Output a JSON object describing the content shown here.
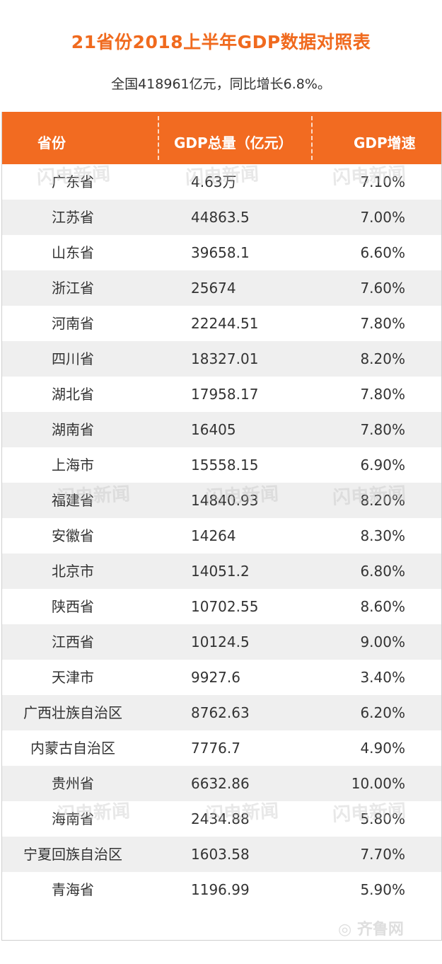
{
  "title": "21省份2018上半年GDP数据对照表",
  "subtitle": "全国418961亿元，同比增长6.8%。",
  "headers": {
    "province": "省份",
    "gdp": "GDP总量（亿元）",
    "rate": "GDP增速"
  },
  "rows": [
    {
      "province": "广东省",
      "gdp": "4.63万",
      "rate": "7.10%"
    },
    {
      "province": "江苏省",
      "gdp": "44863.5",
      "rate": "7.00%"
    },
    {
      "province": "山东省",
      "gdp": "39658.1",
      "rate": "6.60%"
    },
    {
      "province": "浙江省",
      "gdp": "25674",
      "rate": "7.60%"
    },
    {
      "province": "河南省",
      "gdp": "22244.51",
      "rate": "7.80%"
    },
    {
      "province": "四川省",
      "gdp": "18327.01",
      "rate": "8.20%"
    },
    {
      "province": "湖北省",
      "gdp": "17958.17",
      "rate": "7.80%"
    },
    {
      "province": "湖南省",
      "gdp": "16405",
      "rate": "7.80%"
    },
    {
      "province": "上海市",
      "gdp": "15558.15",
      "rate": "6.90%"
    },
    {
      "province": "福建省",
      "gdp": "14840.93",
      "rate": "8.20%"
    },
    {
      "province": "安徽省",
      "gdp": "14264",
      "rate": "8.30%"
    },
    {
      "province": "北京市",
      "gdp": "14051.2",
      "rate": "6.80%"
    },
    {
      "province": "陕西省",
      "gdp": "10702.55",
      "rate": "8.60%"
    },
    {
      "province": "江西省",
      "gdp": "10124.5",
      "rate": "9.00%"
    },
    {
      "province": "天津市",
      "gdp": "9927.6",
      "rate": "3.40%"
    },
    {
      "province": "广西壮族自治区",
      "gdp": "8762.63",
      "rate": "6.20%"
    },
    {
      "province": "内蒙古自治区",
      "gdp": "7776.7",
      "rate": "4.90%"
    },
    {
      "province": "贵州省",
      "gdp": "6632.86",
      "rate": "10.00%"
    },
    {
      "province": "海南省",
      "gdp": "2434.88",
      "rate": "5.80%"
    },
    {
      "province": "宁夏回族自治区",
      "gdp": "1603.58",
      "rate": "7.70%"
    },
    {
      "province": "青海省",
      "gdp": "1196.99",
      "rate": "5.90%"
    }
  ],
  "watermark": "闪电新闻",
  "logo": "齐鲁网",
  "colors": {
    "header": "#f26b21",
    "title": "#f06a1e",
    "alt_row": "#efefef"
  }
}
